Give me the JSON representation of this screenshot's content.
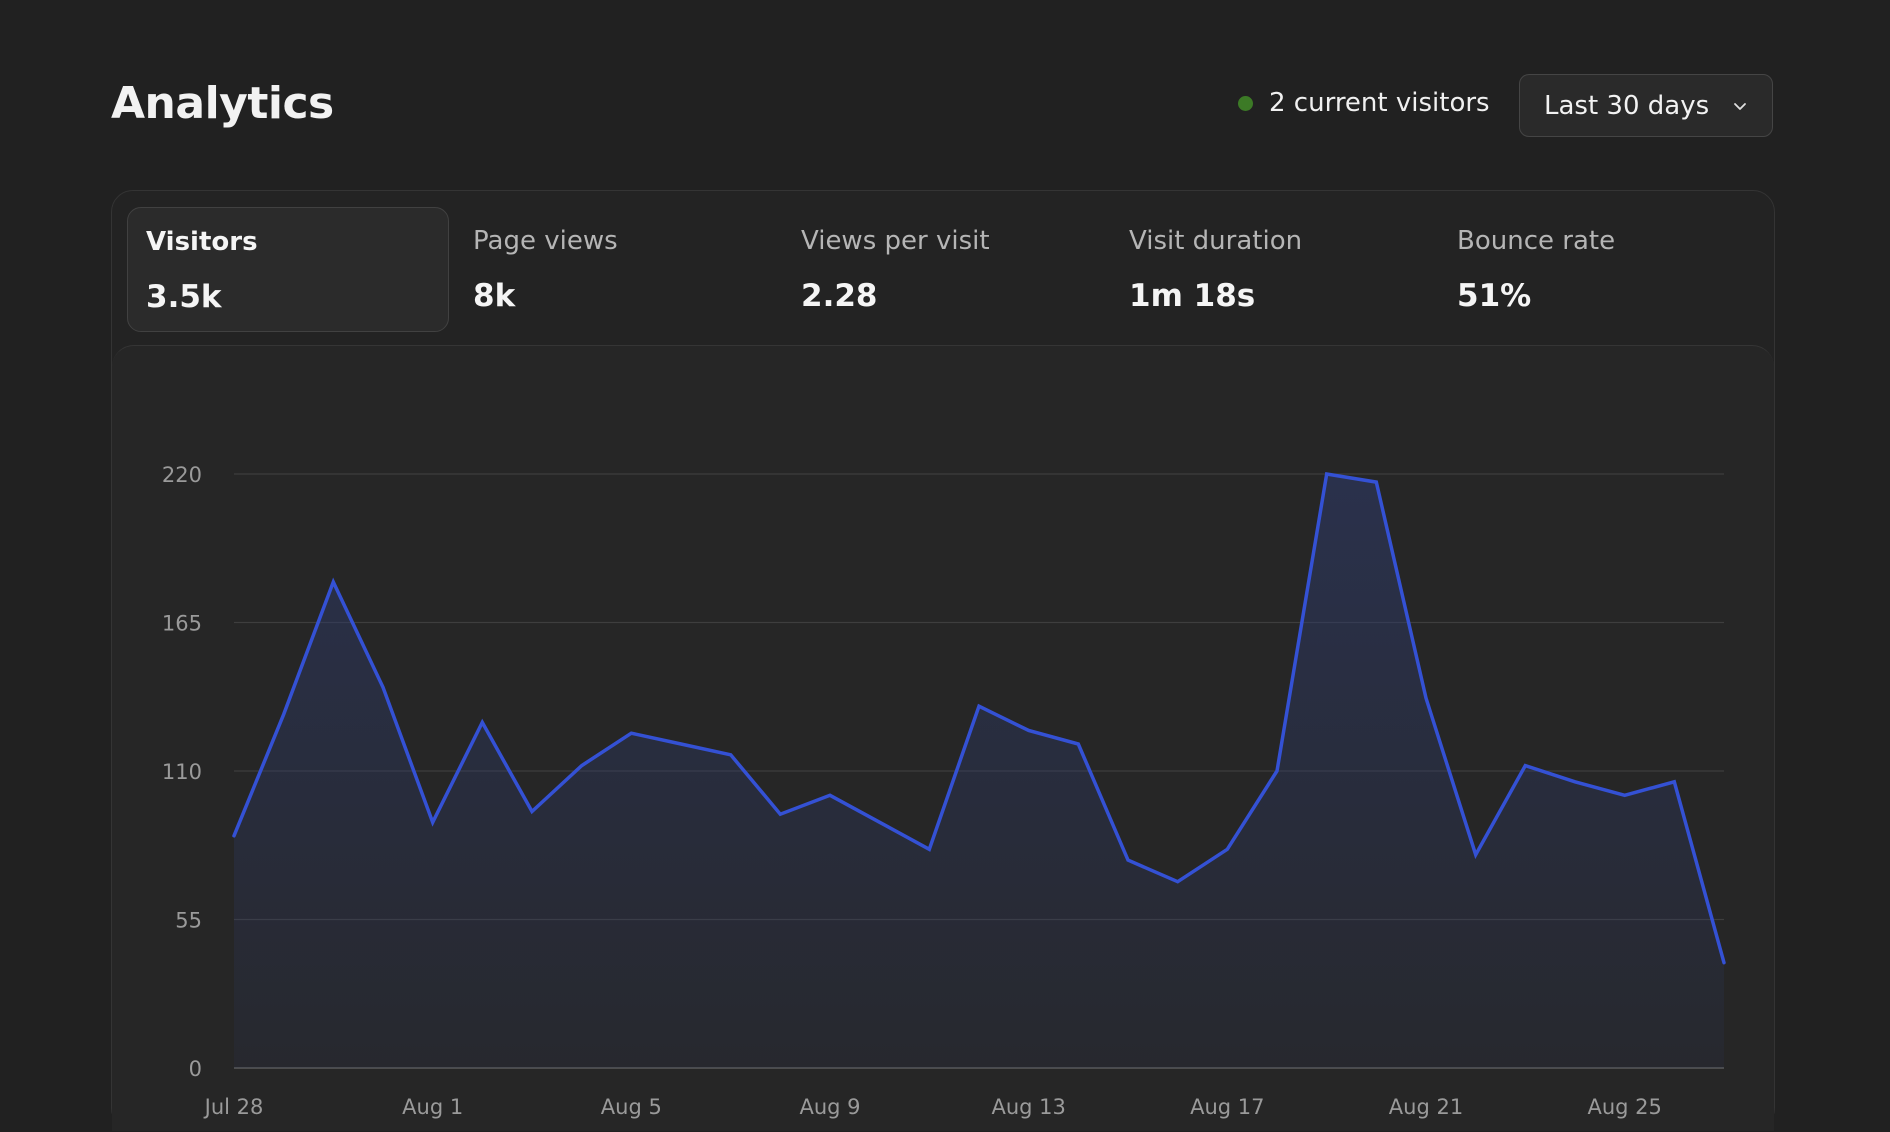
{
  "header": {
    "title": "Analytics",
    "live_visitors": "2 current visitors",
    "live_color": "#3c7a26",
    "date_range": "Last 30 days",
    "date_range_icon": "chevron-down-icon"
  },
  "tabs": [
    {
      "label": "Visitors",
      "value": "3.5k",
      "active": true
    },
    {
      "label": "Page views",
      "value": "8k",
      "active": false
    },
    {
      "label": "Views per visit",
      "value": "2.28",
      "active": false
    },
    {
      "label": "Visit duration",
      "value": "1m 18s",
      "active": false
    },
    {
      "label": "Bounce rate",
      "value": "51%",
      "active": false
    }
  ],
  "chart_data": {
    "type": "area",
    "x": [
      "Jul 28",
      "Jul 29",
      "Jul 30",
      "Jul 31",
      "Aug 1",
      "Aug 2",
      "Aug 3",
      "Aug 4",
      "Aug 5",
      "Aug 6",
      "Aug 7",
      "Aug 8",
      "Aug 9",
      "Aug 10",
      "Aug 11",
      "Aug 12",
      "Aug 13",
      "Aug 14",
      "Aug 15",
      "Aug 16",
      "Aug 17",
      "Aug 18",
      "Aug 19",
      "Aug 20",
      "Aug 21",
      "Aug 22",
      "Aug 23",
      "Aug 24",
      "Aug 25",
      "Aug 26",
      "Aug 27"
    ],
    "series": [
      {
        "values": [
          86,
          131,
          180,
          141,
          91,
          128,
          95,
          112,
          124,
          120,
          116,
          94,
          101,
          91,
          81,
          134,
          125,
          120,
          77,
          69,
          81,
          110,
          220,
          217,
          137,
          79,
          112,
          106,
          101,
          106,
          39
        ]
      }
    ],
    "xticks": [
      "Jul 28",
      "Aug 1",
      "Aug 5",
      "Aug 9",
      "Aug 13",
      "Aug 17",
      "Aug 21",
      "Aug 25"
    ],
    "yticks": [
      0,
      55,
      110,
      165,
      220
    ],
    "ylim": [
      0,
      220
    ],
    "grid": true,
    "line_color": "#3451d4",
    "fill_color": "#2d3a6b"
  }
}
